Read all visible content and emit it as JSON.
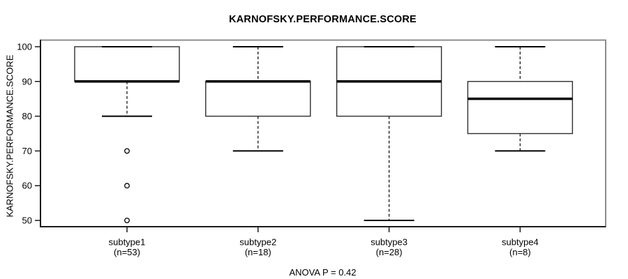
{
  "colors": {
    "line": "#000000",
    "box_edge": "#2e2e2e",
    "frame_dark": "#1a1a1a",
    "frame_shadow": "#8c8c8c",
    "background": "#ffffff"
  },
  "chart_data": {
    "type": "boxplot",
    "title": "KARNOFSKY.PERFORMANCE.SCORE",
    "xlabel": "",
    "ylabel": "KARNOFSKY.PERFORMANCE.SCORE",
    "ylim": [
      48,
      102
    ],
    "y_ticks": [
      50,
      60,
      70,
      80,
      90,
      100
    ],
    "grid": false,
    "annotation": "ANOVA P = 0.42",
    "categories": [
      {
        "label": "subtype1",
        "sublabel": "(n=53)"
      },
      {
        "label": "subtype2",
        "sublabel": "(n=18)"
      },
      {
        "label": "subtype3",
        "sublabel": "(n=28)"
      },
      {
        "label": "subtype4",
        "sublabel": "(n=8)"
      }
    ],
    "series": [
      {
        "name": "subtype1",
        "n": 53,
        "q1": 90,
        "median": 90,
        "q3": 100,
        "whisker_low": 80,
        "whisker_high": 100,
        "outliers": [
          70,
          60,
          50
        ]
      },
      {
        "name": "subtype2",
        "n": 18,
        "q1": 80,
        "median": 90,
        "q3": 90,
        "whisker_low": 70,
        "whisker_high": 100,
        "outliers": []
      },
      {
        "name": "subtype3",
        "n": 28,
        "q1": 80,
        "median": 90,
        "q3": 100,
        "whisker_low": 50,
        "whisker_high": 100,
        "outliers": []
      },
      {
        "name": "subtype4",
        "n": 8,
        "q1": 75,
        "median": 85,
        "q3": 90,
        "whisker_low": 70,
        "whisker_high": 100,
        "outliers": []
      }
    ]
  }
}
